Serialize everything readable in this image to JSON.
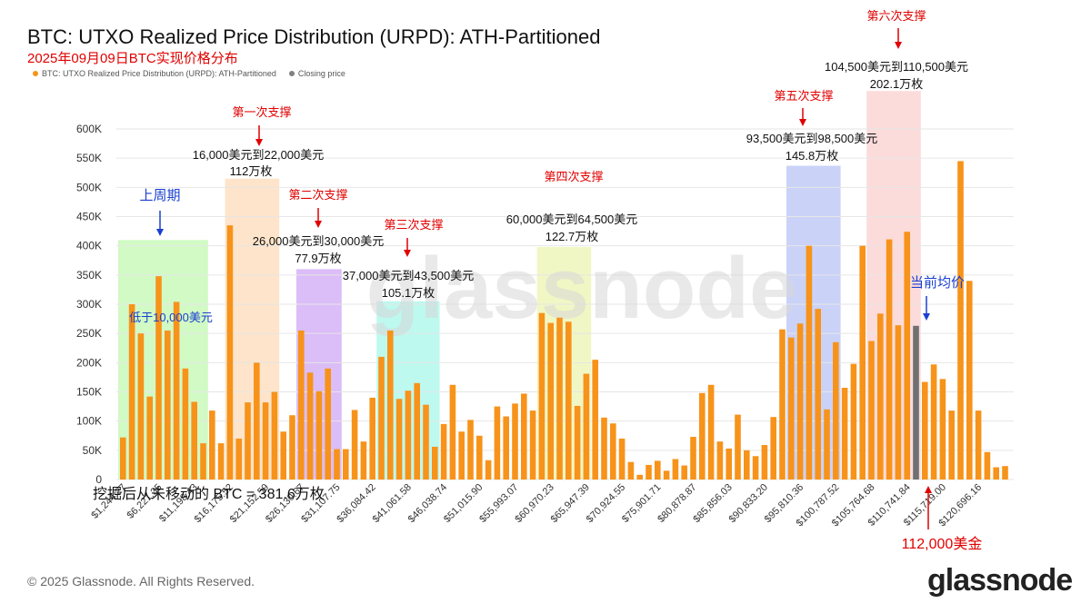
{
  "title": "BTC: UTXO Realized Price Distribution (URPD): ATH-Partitioned",
  "subtitle": "2025年09月09日BTC实现价格分布",
  "legend": [
    {
      "label": "BTC: UTXO Realized Price Distribution (URPD): ATH-Partitioned",
      "color": "#f7931a"
    },
    {
      "label": "Closing price",
      "color": "#808080"
    }
  ],
  "watermark": "glassnode",
  "footer": "© 2025 Glassnode. All Rights Reserved.",
  "logo": "glassnode",
  "colors": {
    "bar": "#f7931a",
    "close": "#707070",
    "annotation_red": "#e00000",
    "annotation_blue": "#1a40d0"
  },
  "chart_data": {
    "type": "bar",
    "ylim": [
      0,
      600000
    ],
    "y_ticks": [
      "0",
      "50K",
      "100K",
      "150K",
      "200K",
      "250K",
      "300K",
      "350K",
      "400K",
      "450K",
      "500K",
      "550K",
      "600K"
    ],
    "x_tick_labels": [
      "$1,244.27",
      "$6,221.35",
      "$11,198.43",
      "$16,175.52",
      "$21,152.59",
      "$26,130.67",
      "$31,107.75",
      "$36,084.42",
      "$41,061.58",
      "$46,038.74",
      "$51,015.90",
      "$55,993.07",
      "$60,970.23",
      "$65,947.39",
      "$70,924.55",
      "$75,901.71",
      "$80,878.87",
      "$85,856.03",
      "$90,833.20",
      "$95,810.36",
      "$100,787.52",
      "$105,764.68",
      "$110,741.84",
      "$115,719.00",
      "$120,696.16"
    ],
    "values": [
      72000,
      300000,
      250000,
      142000,
      348000,
      255000,
      304000,
      190000,
      133000,
      62000,
      118000,
      62000,
      435000,
      70000,
      132000,
      200000,
      132000,
      150000,
      82000,
      110000,
      255000,
      183000,
      151000,
      190000,
      52000,
      52000,
      119000,
      65000,
      140000,
      210000,
      255000,
      138000,
      152000,
      165000,
      128000,
      56000,
      95000,
      162000,
      82000,
      102000,
      75000,
      33000,
      125000,
      108000,
      130000,
      147000,
      118000,
      285000,
      268000,
      277000,
      270000,
      126000,
      181000,
      205000,
      106000,
      96000,
      70000,
      30000,
      8000,
      25000,
      32000,
      15000,
      35000,
      24000,
      73000,
      148000,
      162000,
      65000,
      53000,
      111000,
      50000,
      40000,
      59000,
      107000,
      257000,
      243000,
      267000,
      400000,
      292000,
      120000,
      235000,
      157000,
      198000,
      400000,
      237000,
      284000,
      411000,
      264000,
      424000,
      263000,
      167000,
      197000,
      172000,
      118000,
      545000,
      340000,
      118000,
      47000,
      21000,
      23000
    ],
    "closing_price_bar_index": 89
  },
  "annotations": {
    "prev_cycle": "上周期",
    "below_10k": "低于10,000美元",
    "support1": {
      "label": "第一次支撑",
      "range": "16,000美元到22,000美元",
      "amount": "112万枚"
    },
    "support2": {
      "label": "第二次支撑",
      "range": "26,000美元到30,000美元",
      "amount": "77.9万枚"
    },
    "support3": {
      "label": "第三次支撑",
      "range": "37,000美元到43,500美元",
      "amount": "105.1万枚"
    },
    "support4": {
      "label": "第四次支撑",
      "range": "60,000美元到64,500美元",
      "amount": "122.7万枚"
    },
    "support5": {
      "label": "第五次支撑",
      "range": "93,500美元到98,500美元",
      "amount": "145.8万枚"
    },
    "support6": {
      "label": "第六次支撑",
      "range": "104,500美元到110,500美元",
      "amount": "202.1万枚"
    },
    "current_avg": "当前均价",
    "price_112k": "112,000美金",
    "never_moved": "挖掘后从未移动的 BTC = 381.6万枚"
  }
}
